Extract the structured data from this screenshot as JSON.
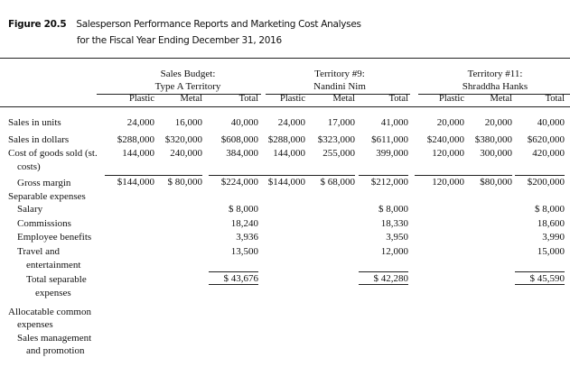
{
  "figure_label": "Figure 20.5",
  "title_line1": "Salesperson Performance Reports and Marketing Cost Analyses",
  "title_line2": "for the Fiscal Year Ending December 31, 2016",
  "groups": [
    {
      "line1": "Sales Budget:",
      "line2": "Type A Territory"
    },
    {
      "line1": "Territory #9:",
      "line2": "Nandini Nim"
    },
    {
      "line1": "Territory #11:",
      "line2": "Shraddha Hanks"
    }
  ],
  "columns": [
    "Plastic",
    "Metal",
    "Total",
    "Plastic",
    "Metal",
    "Total",
    "Plastic",
    "Metal",
    "Total"
  ],
  "rows": [
    {
      "label": "Sales in units",
      "values": [
        "24,000",
        "16,000",
        "40,000",
        "24,000",
        "17,000",
        "41,000",
        "20,000",
        "20,000",
        "40,000"
      ]
    },
    {
      "label": "Sales in dollars",
      "values": [
        "$288,000",
        "$320,000",
        "$608,000",
        "$288,000",
        "$323,000",
        "$611,000",
        "$240,000",
        "$380,000",
        "$620,000"
      ]
    },
    {
      "label": "Cost of goods sold (st.",
      "values": [
        "144,000",
        "240,000",
        "384,000",
        "144,000",
        "255,000",
        "399,000",
        "120,000",
        "300,000",
        "420,000"
      ]
    },
    {
      "label": "costs)",
      "indent": true,
      "values": []
    },
    {
      "label": "Gross margin",
      "indent": true,
      "overline": true,
      "values": [
        "$144,000",
        "$ 80,000",
        "$224,000",
        "$144,000",
        "$ 68,000",
        "$212,000",
        "120,000",
        "$80,000",
        "$200,000"
      ]
    },
    {
      "label": "Separable expenses",
      "values": []
    },
    {
      "label": "Salary",
      "indent": true,
      "values": [
        "",
        "",
        "$  8,000",
        "",
        "",
        "$  8,000",
        "",
        "",
        "$  8,000"
      ]
    },
    {
      "label": "Commissions",
      "indent": true,
      "values": [
        "",
        "",
        "18,240",
        "",
        "",
        "18,330",
        "",
        "",
        "18,600"
      ]
    },
    {
      "label": "Employee benefits",
      "indent": true,
      "values": [
        "",
        "",
        "3,936",
        "",
        "",
        "3,950",
        "",
        "",
        "3,990"
      ]
    },
    {
      "label": "Travel and",
      "indent": true,
      "values": [
        "",
        "",
        "13,500",
        "",
        "",
        "12,000",
        "",
        "",
        "15,000"
      ]
    },
    {
      "label": "entertainment",
      "indent2": true,
      "values": []
    },
    {
      "label": "Total separable",
      "indent2": true,
      "boxed": true,
      "values": [
        "",
        "",
        "$ 43,676",
        "",
        "",
        "$ 42,280",
        "",
        "",
        "$ 45,590"
      ]
    },
    {
      "label": "expenses",
      "indent3": true,
      "values": []
    },
    {
      "label": "Allocatable common",
      "values": []
    },
    {
      "label": "expenses",
      "indent": true,
      "values": []
    },
    {
      "label": "Sales management",
      "indent": true,
      "values": []
    },
    {
      "label": "and promotion",
      "indent2": true,
      "values": []
    }
  ]
}
